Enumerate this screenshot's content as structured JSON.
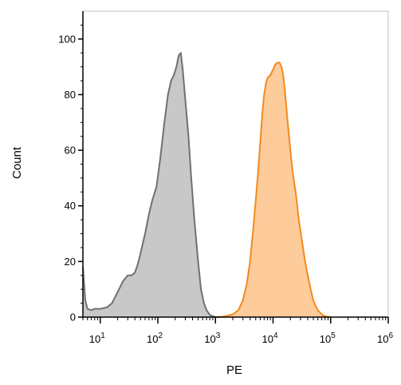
{
  "chart_data": {
    "type": "area",
    "title": "",
    "xlabel": "PE",
    "ylabel": "Count",
    "x_scale": "log",
    "xlim": [
      5,
      1000000
    ],
    "ylim": [
      0,
      110
    ],
    "grid": false,
    "x_ticks": [
      {
        "value": 10,
        "base": "10",
        "exp": "1"
      },
      {
        "value": 100,
        "base": "10",
        "exp": "2"
      },
      {
        "value": 1000,
        "base": "10",
        "exp": "3"
      },
      {
        "value": 10000,
        "base": "10",
        "exp": "4"
      },
      {
        "value": 100000,
        "base": "10",
        "exp": "5"
      },
      {
        "value": 1000000,
        "base": "10",
        "exp": "6"
      }
    ],
    "y_ticks": [
      0,
      20,
      40,
      60,
      80,
      100
    ],
    "series": [
      {
        "fill": "#c8c8c8",
        "stroke": "#707070",
        "points": [
          [
            5,
            18
          ],
          [
            5.5,
            6
          ],
          [
            6,
            3
          ],
          [
            7,
            2.5
          ],
          [
            8,
            3
          ],
          [
            10,
            3
          ],
          [
            13,
            3.5
          ],
          [
            16,
            5
          ],
          [
            20,
            9
          ],
          [
            25,
            13
          ],
          [
            30,
            15
          ],
          [
            35,
            15
          ],
          [
            40,
            16
          ],
          [
            45,
            19
          ],
          [
            50,
            23
          ],
          [
            60,
            30
          ],
          [
            70,
            37
          ],
          [
            80,
            42
          ],
          [
            95,
            47
          ],
          [
            110,
            57
          ],
          [
            130,
            70
          ],
          [
            150,
            80
          ],
          [
            170,
            85
          ],
          [
            190,
            87
          ],
          [
            210,
            90
          ],
          [
            230,
            94
          ],
          [
            250,
            95
          ],
          [
            270,
            89
          ],
          [
            300,
            78
          ],
          [
            340,
            65
          ],
          [
            380,
            50
          ],
          [
            430,
            35
          ],
          [
            500,
            20
          ],
          [
            560,
            10
          ],
          [
            630,
            5
          ],
          [
            700,
            2.5
          ],
          [
            800,
            0.8
          ],
          [
            900,
            0.3
          ],
          [
            1000,
            0.1
          ],
          [
            1200,
            0
          ]
        ]
      },
      {
        "fill": "#fecb9a",
        "stroke": "#f28a1e",
        "points": [
          [
            1200,
            0
          ],
          [
            1600,
            0.5
          ],
          [
            2000,
            1
          ],
          [
            2500,
            2.5
          ],
          [
            3000,
            6
          ],
          [
            3500,
            12
          ],
          [
            4000,
            20
          ],
          [
            4500,
            31
          ],
          [
            5000,
            42
          ],
          [
            5500,
            52
          ],
          [
            6000,
            63
          ],
          [
            6500,
            73
          ],
          [
            7000,
            80
          ],
          [
            7500,
            84
          ],
          [
            8000,
            86
          ],
          [
            9000,
            87
          ],
          [
            10000,
            89
          ],
          [
            11000,
            91
          ],
          [
            12000,
            91.5
          ],
          [
            13000,
            91.5
          ],
          [
            14000,
            90
          ],
          [
            15000,
            87
          ],
          [
            16000,
            82
          ],
          [
            18000,
            70
          ],
          [
            20000,
            60
          ],
          [
            22000,
            52
          ],
          [
            25000,
            44
          ],
          [
            28000,
            35
          ],
          [
            32000,
            27
          ],
          [
            36000,
            20
          ],
          [
            40000,
            15
          ],
          [
            45000,
            10
          ],
          [
            50000,
            6
          ],
          [
            55000,
            4
          ],
          [
            60000,
            2.5
          ],
          [
            70000,
            1
          ],
          [
            80000,
            0.3
          ],
          [
            100000,
            0
          ]
        ]
      }
    ]
  }
}
